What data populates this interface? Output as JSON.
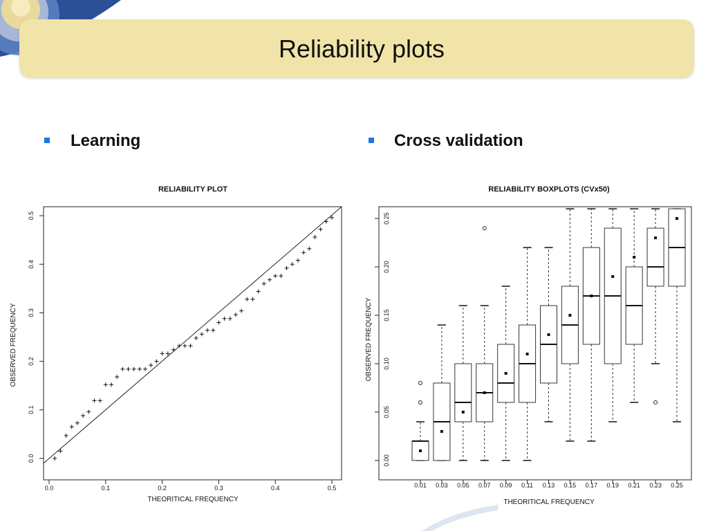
{
  "slide": {
    "title": "Reliability plots",
    "bullets": [
      "Learning",
      "Cross validation"
    ]
  },
  "colors": {
    "banner": "#f1e4a9",
    "bullet": "#1e78e0",
    "deco_dark": "#2c4f96",
    "deco_light": "#e9d99a"
  },
  "chart_data": [
    {
      "type": "scatter",
      "title": "RELIABILITY PLOT",
      "xlabel": "THEORITICAL FREQUENCY",
      "ylabel": "OBSERVED FREQUENCY",
      "xlim": [
        0,
        0.5
      ],
      "ylim": [
        0,
        0.5
      ],
      "xticks": [
        "0.0",
        "0.1",
        "0.2",
        "0.3",
        "0.4",
        "0.5"
      ],
      "yticks": [
        "0.0",
        "0.1",
        "0.2",
        "0.3",
        "0.4",
        "0.5"
      ],
      "marker": "+",
      "reference_line": "y = x",
      "points": [
        [
          0.01,
          0.0
        ],
        [
          0.02,
          0.015
        ],
        [
          0.03,
          0.047
        ],
        [
          0.04,
          0.065
        ],
        [
          0.05,
          0.073
        ],
        [
          0.06,
          0.088
        ],
        [
          0.07,
          0.096
        ],
        [
          0.08,
          0.119
        ],
        [
          0.09,
          0.119
        ],
        [
          0.1,
          0.152
        ],
        [
          0.11,
          0.152
        ],
        [
          0.12,
          0.168
        ],
        [
          0.13,
          0.184
        ],
        [
          0.14,
          0.184
        ],
        [
          0.15,
          0.184
        ],
        [
          0.16,
          0.184
        ],
        [
          0.17,
          0.184
        ],
        [
          0.18,
          0.192
        ],
        [
          0.19,
          0.2
        ],
        [
          0.2,
          0.216
        ],
        [
          0.21,
          0.216
        ],
        [
          0.22,
          0.224
        ],
        [
          0.23,
          0.232
        ],
        [
          0.24,
          0.232
        ],
        [
          0.25,
          0.232
        ],
        [
          0.26,
          0.248
        ],
        [
          0.27,
          0.256
        ],
        [
          0.28,
          0.264
        ],
        [
          0.29,
          0.264
        ],
        [
          0.3,
          0.28
        ],
        [
          0.31,
          0.288
        ],
        [
          0.32,
          0.288
        ],
        [
          0.33,
          0.296
        ],
        [
          0.34,
          0.304
        ],
        [
          0.35,
          0.328
        ],
        [
          0.36,
          0.328
        ],
        [
          0.37,
          0.344
        ],
        [
          0.38,
          0.36
        ],
        [
          0.39,
          0.368
        ],
        [
          0.4,
          0.376
        ],
        [
          0.41,
          0.376
        ],
        [
          0.42,
          0.392
        ],
        [
          0.43,
          0.4
        ],
        [
          0.44,
          0.408
        ],
        [
          0.45,
          0.424
        ],
        [
          0.46,
          0.432
        ],
        [
          0.47,
          0.456
        ],
        [
          0.48,
          0.472
        ],
        [
          0.49,
          0.488
        ],
        [
          0.5,
          0.496
        ]
      ]
    },
    {
      "type": "boxplot",
      "title": "RELIABILITY BOXPLOTS (CVx50)",
      "xlabel": "THEORITICAL FREQUENCY",
      "ylabel": "OBSERVED FREQUENCY",
      "ylim": [
        -0.005,
        0.26
      ],
      "yticks": [
        "0.00",
        "0.05",
        "0.10",
        "0.15",
        "0.20",
        "0.25"
      ],
      "categories": [
        "0.01",
        "0.03",
        "0.05",
        "0.07",
        "0.09",
        "0.11",
        "0.13",
        "0.15",
        "0.17",
        "0.19",
        "0.21",
        "0.23",
        "0.25"
      ],
      "boxes": [
        {
          "whisker_low": 0.0,
          "q1": 0.0,
          "median": 0.02,
          "q3": 0.02,
          "whisker_high": 0.04,
          "mean": 0.01,
          "outliers": [
            0.06,
            0.08
          ]
        },
        {
          "whisker_low": 0.0,
          "q1": 0.0,
          "median": 0.04,
          "q3": 0.08,
          "whisker_high": 0.14,
          "mean": 0.03,
          "outliers": []
        },
        {
          "whisker_low": 0.0,
          "q1": 0.04,
          "median": 0.06,
          "q3": 0.1,
          "whisker_high": 0.16,
          "mean": 0.05,
          "outliers": []
        },
        {
          "whisker_low": 0.0,
          "q1": 0.04,
          "median": 0.07,
          "q3": 0.1,
          "whisker_high": 0.16,
          "mean": 0.07,
          "outliers": [
            0.24
          ]
        },
        {
          "whisker_low": 0.0,
          "q1": 0.06,
          "median": 0.08,
          "q3": 0.12,
          "whisker_high": 0.18,
          "mean": 0.09,
          "outliers": []
        },
        {
          "whisker_low": 0.0,
          "q1": 0.06,
          "median": 0.1,
          "q3": 0.14,
          "whisker_high": 0.22,
          "mean": 0.11,
          "outliers": []
        },
        {
          "whisker_low": 0.04,
          "q1": 0.08,
          "median": 0.12,
          "q3": 0.16,
          "whisker_high": 0.22,
          "mean": 0.13,
          "outliers": []
        },
        {
          "whisker_low": 0.02,
          "q1": 0.1,
          "median": 0.14,
          "q3": 0.18,
          "whisker_high": 0.26,
          "mean": 0.15,
          "outliers": []
        },
        {
          "whisker_low": 0.02,
          "q1": 0.12,
          "median": 0.17,
          "q3": 0.22,
          "whisker_high": 0.26,
          "mean": 0.17,
          "outliers": []
        },
        {
          "whisker_low": 0.04,
          "q1": 0.1,
          "median": 0.17,
          "q3": 0.24,
          "whisker_high": 0.26,
          "mean": 0.19,
          "outliers": []
        },
        {
          "whisker_low": 0.06,
          "q1": 0.12,
          "median": 0.16,
          "q3": 0.2,
          "whisker_high": 0.26,
          "mean": 0.21,
          "outliers": []
        },
        {
          "whisker_low": 0.1,
          "q1": 0.18,
          "median": 0.2,
          "q3": 0.24,
          "whisker_high": 0.26,
          "mean": 0.23,
          "outliers": [
            0.06
          ]
        },
        {
          "whisker_low": 0.04,
          "q1": 0.18,
          "median": 0.22,
          "q3": 0.26,
          "whisker_high": 0.26,
          "mean": 0.25,
          "outliers": []
        }
      ]
    }
  ]
}
